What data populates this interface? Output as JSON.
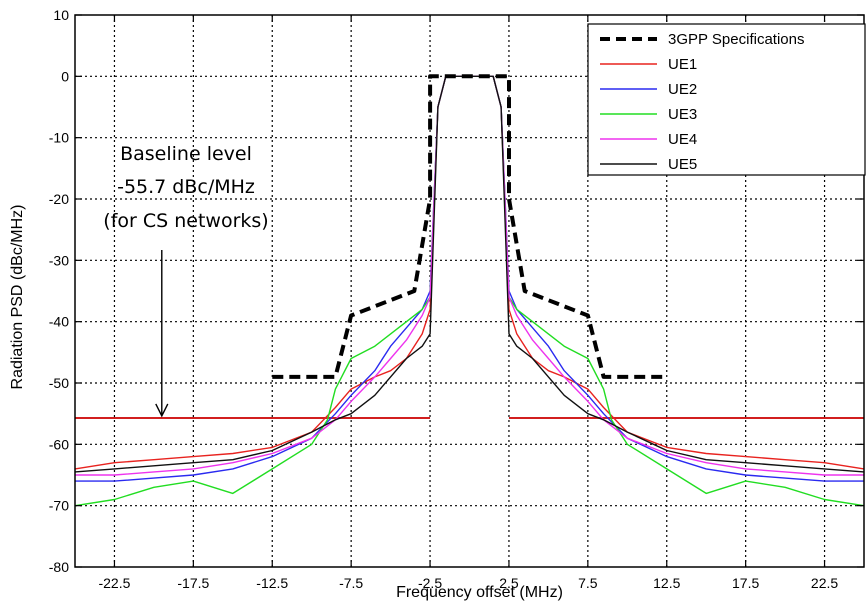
{
  "chart_data": {
    "type": "line",
    "title": "",
    "xlabel": "Frequency offset (MHz)",
    "ylabel": "Radiation PSD (dBc/MHz)",
    "xlim": [
      -25,
      25
    ],
    "ylim": [
      -80,
      10
    ],
    "x_ticks": [
      -22.5,
      -17.5,
      -12.5,
      -7.5,
      -2.5,
      2.5,
      7.5,
      12.5,
      17.5,
      22.5
    ],
    "x_tick_labels": [
      "-22.5",
      "-17.5",
      "-12.5",
      "-7.5",
      "-2.5",
      "2.5",
      "7.5",
      "12.5",
      "17.5",
      "22.5"
    ],
    "y_ticks": [
      10,
      0,
      -10,
      -20,
      -30,
      -40,
      -50,
      -60,
      -70,
      -80
    ],
    "y_tick_labels": [
      "10",
      "0",
      "-10",
      "-20",
      "-30",
      "-40",
      "-50",
      "-60",
      "-70",
      "-80"
    ],
    "grid": true,
    "legend_position": "top-right",
    "colors": {
      "spec": "#000000",
      "UE1": "#e8231f",
      "UE2": "#2a2af0",
      "UE3": "#22dd22",
      "UE4": "#ee33ee",
      "UE5": "#111111",
      "baseline": "#d21f1f"
    },
    "series": [
      {
        "name": "3GPP Specifications",
        "style": "dashed",
        "x": [
          -12.5,
          -8.5,
          -7.5,
          -3.5,
          -2.5,
          -2.5,
          2.5,
          2.5,
          3.5,
          7.5,
          8.5,
          12.5
        ],
        "y": [
          -49,
          -49,
          -39,
          -35,
          -20,
          0,
          0,
          -20,
          -35,
          -39,
          -49,
          -49
        ]
      },
      {
        "name": "UE1",
        "x": [
          -25,
          -22.5,
          -20,
          -17.5,
          -15,
          -12.5,
          -10,
          -8.5,
          -7.5,
          -6,
          -5,
          -4,
          -3,
          -2.5,
          -2,
          -1.5,
          1.5,
          2,
          2.5,
          3,
          4,
          5,
          6,
          7.5,
          8.5,
          10,
          12.5,
          15,
          17.5,
          20,
          22.5,
          25
        ],
        "y": [
          -64,
          -63,
          -62.5,
          -62,
          -61.5,
          -60.5,
          -58,
          -54,
          -51,
          -49,
          -48,
          -46,
          -42,
          -38,
          -5,
          0,
          0,
          -5,
          -38,
          -42,
          -46,
          -48,
          -49,
          -51,
          -54,
          -58,
          -60.5,
          -61.5,
          -62,
          -62.5,
          -63,
          -64
        ]
      },
      {
        "name": "UE2",
        "x": [
          -25,
          -22.5,
          -20,
          -17.5,
          -15,
          -12.5,
          -10,
          -8.5,
          -7.5,
          -6,
          -5,
          -4,
          -3,
          -2.5,
          -2,
          -1.5,
          1.5,
          2,
          2.5,
          3,
          4,
          5,
          6,
          7.5,
          8.5,
          10,
          12.5,
          15,
          17.5,
          20,
          22.5,
          25
        ],
        "y": [
          -66,
          -66,
          -65.5,
          -65,
          -64,
          -62,
          -59,
          -55,
          -52,
          -48,
          -44,
          -41,
          -38,
          -35,
          -5,
          0,
          0,
          -5,
          -35,
          -38,
          -41,
          -44,
          -48,
          -52,
          -55,
          -59,
          -62,
          -64,
          -65,
          -65.5,
          -66,
          -66
        ]
      },
      {
        "name": "UE3",
        "x": [
          -25,
          -22.5,
          -20,
          -17.5,
          -15,
          -12.5,
          -10,
          -9,
          -8.5,
          -7.5,
          -6,
          -5,
          -4,
          -3,
          -2.5,
          -2,
          -1.5,
          1.5,
          2,
          2.5,
          3,
          4,
          5,
          6,
          7.5,
          8.5,
          9,
          10,
          12.5,
          15,
          17.5,
          20,
          22.5,
          25
        ],
        "y": [
          -70,
          -69,
          -67,
          -66,
          -68,
          -64,
          -60,
          -56,
          -51,
          -46,
          -44,
          -42,
          -40,
          -38,
          -36,
          -5,
          0,
          0,
          -5,
          -36,
          -38,
          -40,
          -42,
          -44,
          -46,
          -51,
          -56,
          -60,
          -64,
          -68,
          -66,
          -67,
          -69,
          -70
        ]
      },
      {
        "name": "UE4",
        "x": [
          -25,
          -22.5,
          -20,
          -17.5,
          -15,
          -12.5,
          -10,
          -8.5,
          -7.5,
          -6,
          -5,
          -4,
          -3,
          -2.5,
          -2,
          -1.5,
          1.5,
          2,
          2.5,
          3,
          4,
          5,
          6,
          7.5,
          8.5,
          10,
          12.5,
          15,
          17.5,
          20,
          22.5,
          25
        ],
        "y": [
          -65,
          -65,
          -64.5,
          -64,
          -63,
          -61.5,
          -59,
          -56,
          -53,
          -49,
          -46,
          -43,
          -39,
          -36,
          -5,
          0,
          0,
          -5,
          -36,
          -39,
          -43,
          -46,
          -49,
          -53,
          -56,
          -59,
          -61.5,
          -63,
          -64,
          -64.5,
          -65,
          -65
        ]
      },
      {
        "name": "UE5",
        "x": [
          -25,
          -22.5,
          -20,
          -17.5,
          -15,
          -12.5,
          -10,
          -8.5,
          -7.5,
          -6,
          -5,
          -4,
          -3,
          -2.5,
          -2,
          -1.5,
          1.5,
          2,
          2.5,
          3,
          4,
          5,
          6,
          7.5,
          8.5,
          10,
          12.5,
          15,
          17.5,
          20,
          22.5,
          25
        ],
        "y": [
          -64.5,
          -64,
          -63.5,
          -63,
          -62.5,
          -61,
          -58,
          -56,
          -55,
          -52,
          -49,
          -46,
          -44,
          -42,
          -5,
          0,
          0,
          -5,
          -42,
          -44,
          -46,
          -49,
          -52,
          -55,
          -56,
          -58,
          -61,
          -62.5,
          -63,
          -63.5,
          -64,
          -64.5
        ]
      }
    ],
    "reference_lines": [
      {
        "x": [
          -25,
          -2.5
        ],
        "y": [
          -55.7,
          -55.7
        ]
      },
      {
        "x": [
          2.5,
          25
        ],
        "y": [
          -55.7,
          -55.7
        ]
      }
    ],
    "annotations": {
      "line1": "Baseline level",
      "line2": "-55.7 dBc/MHz",
      "line3": "(for CS networks)",
      "arrow_to": {
        "x": -19.5,
        "y": -55.7
      }
    }
  }
}
